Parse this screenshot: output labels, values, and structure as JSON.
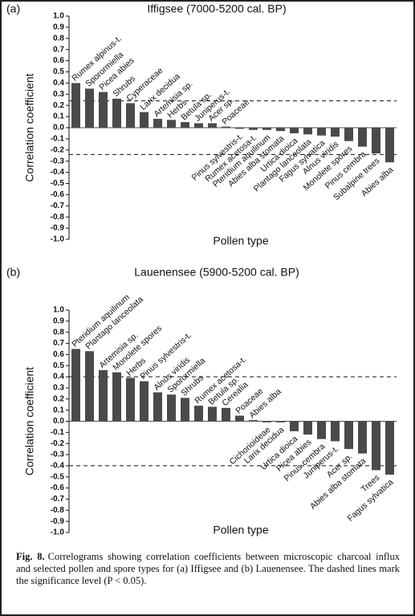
{
  "chart_data": [
    {
      "type": "bar",
      "panel_label": "(a)",
      "title": "Iffigsee (7000-5200 cal. BP)",
      "x_label": "Pollen type",
      "y_label": "Correlation coefficient",
      "color": "#4a4a4a",
      "categories": [
        "Rumex alpinus-t.",
        "Sporormiella",
        "Picea abies",
        "Shrubs",
        "Cyperaceae",
        "Larix decidua",
        "Artemisia sp.",
        "Herbs",
        "Betula sp.",
        "Juniperus-t.",
        "Acer sp.",
        "Poaceae",
        "Pinus sylvestris-t.",
        "Rumex acetosa-t.",
        "Pteridium aquilinum",
        "Abies alba stomata",
        "Urtica dioica",
        "Plantago lanceolata",
        "Fagus sylvatica",
        "Alnus viridis",
        "Monolete spores",
        "Pinus cembra",
        "Subalpine trees",
        "Abies alba"
      ],
      "values": [
        0.4,
        0.35,
        0.32,
        0.26,
        0.22,
        0.14,
        0.08,
        0.07,
        0.05,
        0.04,
        0.04,
        0.01,
        -0.01,
        -0.02,
        -0.02,
        -0.03,
        -0.05,
        -0.06,
        -0.07,
        -0.08,
        -0.12,
        -0.17,
        -0.23,
        -0.31
      ],
      "significance_levels": [
        0.24,
        -0.24
      ],
      "ylim": [
        -1.0,
        1.0
      ],
      "yticks": [
        {
          "value": 1.0,
          "label": "1.0"
        },
        0.9,
        0.8,
        0.7,
        0.6,
        0.5,
        0.4,
        0.3,
        0.2,
        0.1,
        {
          "value": 0.0,
          "label": "0.0"
        },
        -0.1,
        -0.2,
        -0.3,
        -0.4,
        -0.5,
        -0.6,
        -0.7,
        -0.8,
        -0.9,
        {
          "value": -1.0,
          "label": "-1.0"
        }
      ]
    },
    {
      "type": "bar",
      "panel_label": "(b)",
      "title": "Lauenensee (5900-5200 cal. BP)",
      "x_label": "Pollen type",
      "y_label": "Correlation coefficient",
      "color": "#4a4a4a",
      "categories": [
        "Pteridium aquilinum",
        "Plantago lanceolata",
        "Artemisia sp.",
        "Monolete spores",
        "Herbs",
        "Pinus sylvestris-t.",
        "Alnus viridis",
        "Sporormiella",
        "Shrubs",
        "Rumex acetosa-t.",
        "Betula sp.",
        "Cerealia",
        "Poaceae",
        "Abies alba",
        "Cichorioideae",
        "Larix decidua",
        "Urtica dioica",
        "Picea abies",
        "Pinus cembra",
        "Juniperus-t.",
        "Acer sp.",
        "Abies alba stomata",
        "Trees",
        "Fagus sylvatica"
      ],
      "values": [
        0.65,
        0.63,
        0.46,
        0.44,
        0.39,
        0.36,
        0.26,
        0.24,
        0.21,
        0.14,
        0.13,
        0.12,
        0.05,
        0.01,
        -0.01,
        -0.01,
        -0.09,
        -0.12,
        -0.16,
        -0.18,
        -0.25,
        -0.29,
        -0.44,
        -0.48
      ],
      "significance_levels": [
        0.4,
        -0.4
      ],
      "ylim": [
        -1.0,
        1.0
      ],
      "yticks": [
        {
          "value": 1.0,
          "label": "1.0"
        },
        0.9,
        0.8,
        0.7,
        0.6,
        0.5,
        0.4,
        0.3,
        0.2,
        0.1,
        {
          "value": 0.0,
          "label": "0.0"
        },
        -0.1,
        -0.2,
        -0.3,
        -0.4,
        -0.5,
        -0.6,
        -0.7,
        -0.8,
        -0.9,
        {
          "value": -1.0,
          "label": "-1.0"
        }
      ]
    }
  ],
  "caption": {
    "label": "Fig. 8.",
    "text": "Correlograms showing correlation coefficients between microscopic charcoal influx and selected pollen and spore types for (a) Iffigsee and (b) Lauenensee. The dashed lines mark the significance level (P < 0.05)."
  }
}
